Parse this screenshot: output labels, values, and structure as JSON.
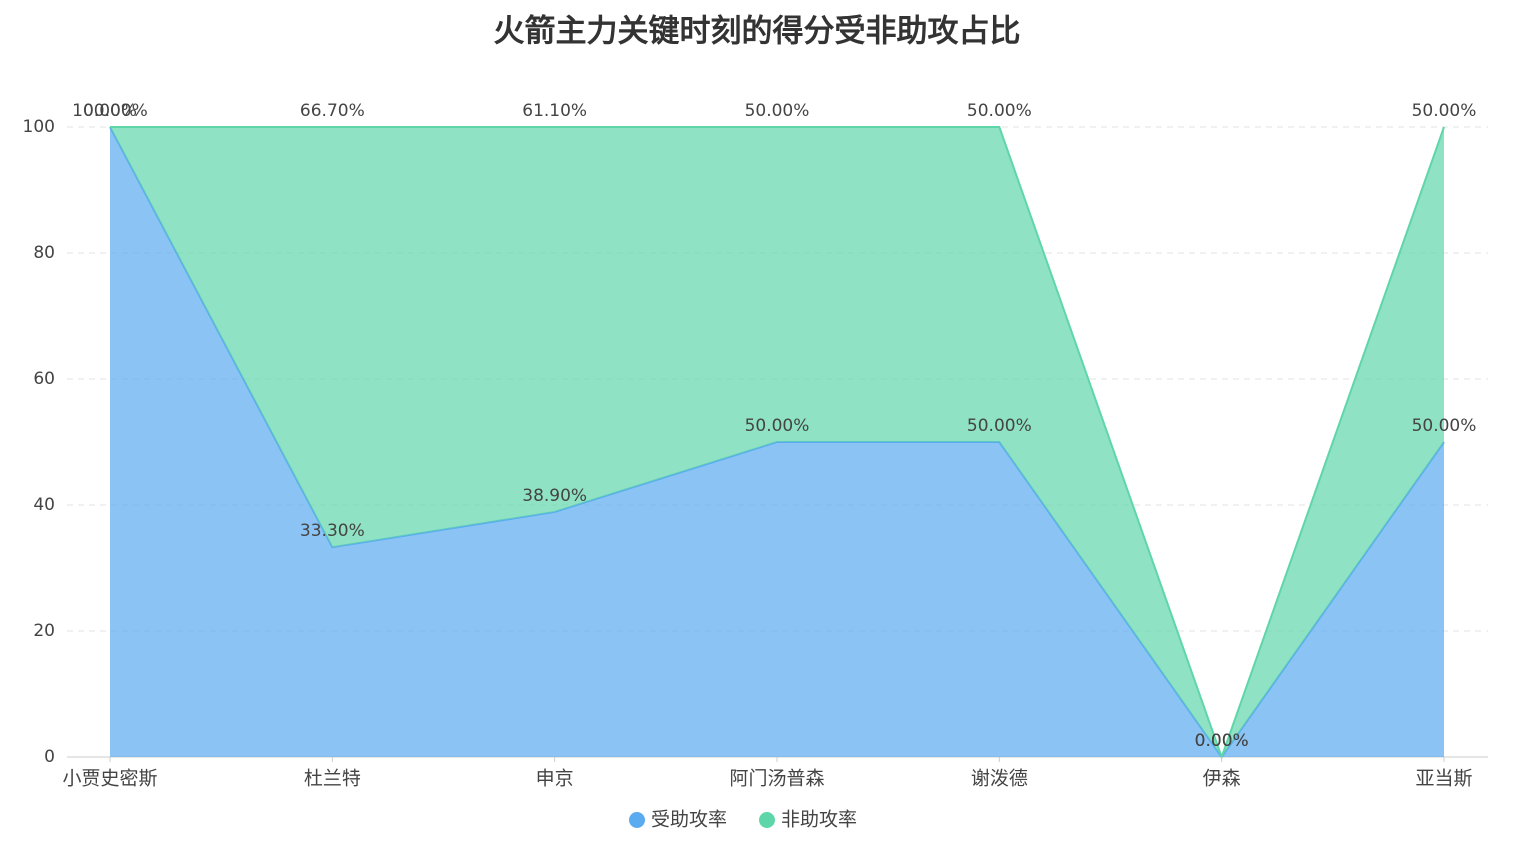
{
  "chart_data": {
    "type": "stacked-area",
    "title": "火箭主力关键时刻的得分受非助攻占比",
    "categories": [
      "小贾史密斯",
      "杜兰特",
      "申京",
      "阿门汤普森",
      "谢泼德",
      "伊森",
      "亚当斯"
    ],
    "series": [
      {
        "name": "受助攻率",
        "color": "#5aabf0",
        "values": [
          100,
          33.3,
          38.9,
          50,
          50,
          0,
          50
        ],
        "value_labels": [
          "100.00%",
          "33.30%",
          "38.90%",
          "50.00%",
          "50.00%",
          "0.00%",
          "50.00%"
        ]
      },
      {
        "name": "非助攻率",
        "color": "#5fd6a9",
        "values": [
          0,
          66.7,
          61.1,
          50,
          50,
          0,
          50
        ],
        "value_labels": [
          "0.00%",
          "66.70%",
          "61.10%",
          "50.00%",
          "50.00%",
          "0.00%",
          "50.00%"
        ]
      }
    ],
    "ylim": [
      0,
      100
    ],
    "yticks": [
      0,
      20,
      40,
      60,
      80,
      100
    ],
    "grid": true,
    "legend": "bottom"
  }
}
